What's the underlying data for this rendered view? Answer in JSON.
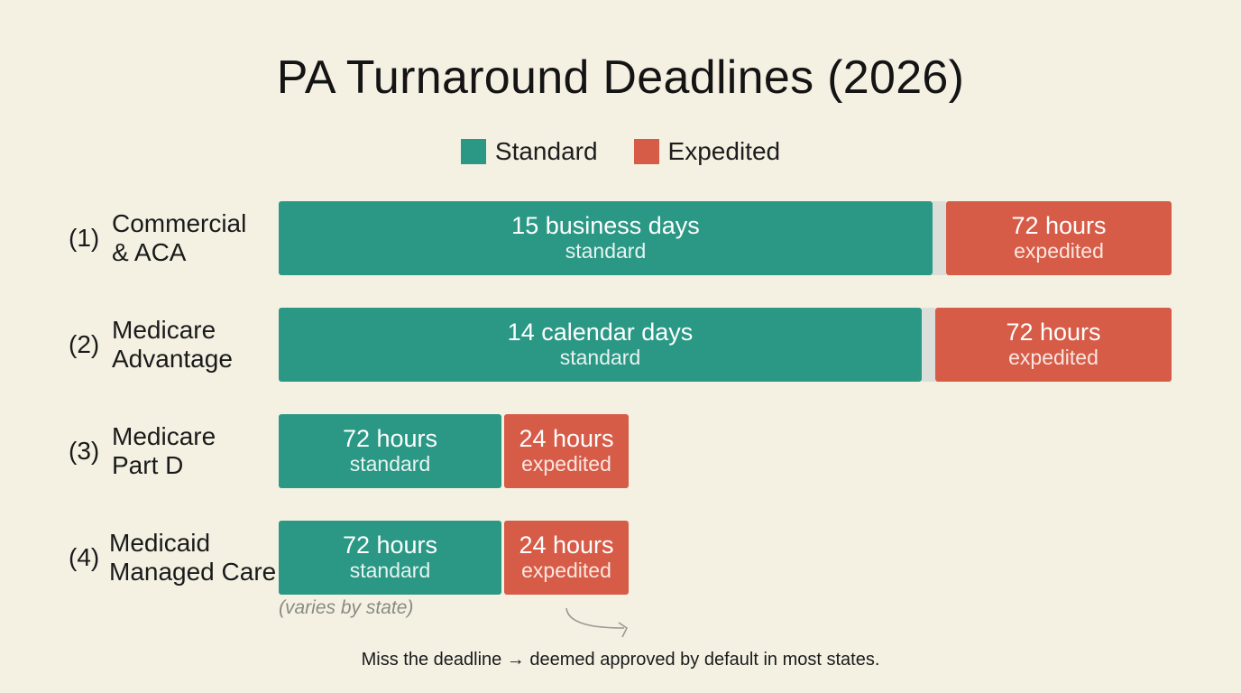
{
  "chart_data": {
    "type": "bar",
    "orientation": "horizontal",
    "stacked": true,
    "title": "PA Turnaround Deadlines (2026)",
    "legend": {
      "placement": "top-center",
      "entries": [
        "Standard",
        "Expedited"
      ]
    },
    "colors": {
      "standard": "#2a9885",
      "expedited": "#d65c48",
      "background": "#f4f1e3"
    },
    "categories": [
      {
        "number": "(1)",
        "lines": [
          "Commercial",
          "& ACA"
        ]
      },
      {
        "number": "(2)",
        "lines": [
          "Medicare",
          "Advantage"
        ]
      },
      {
        "number": "(3)",
        "lines": [
          "Medicare",
          "Part D"
        ]
      },
      {
        "number": "(4)",
        "lines": [
          "Medicaid",
          "Managed Care"
        ]
      }
    ],
    "series": [
      {
        "name": "Standard",
        "labels": [
          "15 business days",
          "14 calendar days",
          "72 hours",
          "72 hours"
        ],
        "sublabel": "standard"
      },
      {
        "name": "Expedited",
        "labels": [
          "72 hours",
          "72 hours",
          "24 hours",
          "24 hours"
        ],
        "sublabel": "expedited"
      }
    ],
    "annotation": "(varies by state)",
    "footer": "Miss the deadline → deemed approved by default in most states.",
    "grid": false
  }
}
